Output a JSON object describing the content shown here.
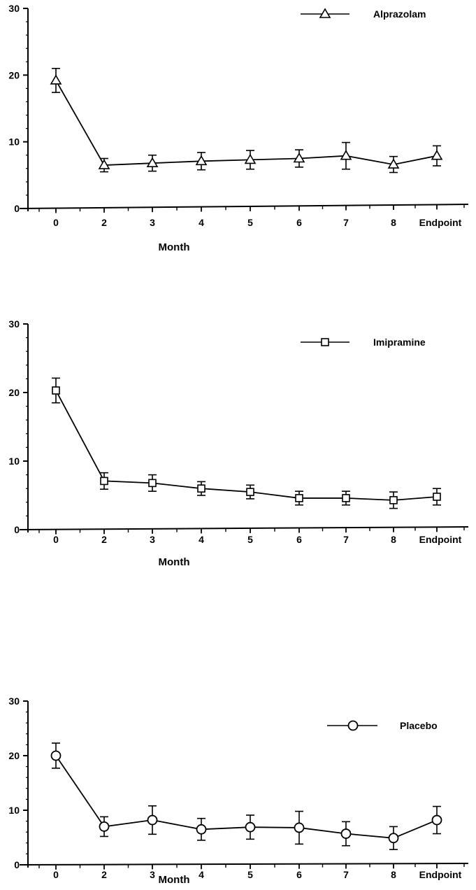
{
  "chart_data": [
    {
      "type": "line",
      "xlabel": "Month",
      "ylabel": "",
      "ylim": [
        0,
        30
      ],
      "yticks": [
        0,
        10,
        20,
        30
      ],
      "categories": [
        "0",
        "2",
        "3",
        "4",
        "5",
        "6",
        "7",
        "8",
        "Endpoint"
      ],
      "legend_position": "top-right",
      "grid": false,
      "series": [
        {
          "name": "Alprazolam",
          "marker": "triangle",
          "values": [
            19.2,
            6.5,
            6.8,
            7.1,
            7.3,
            7.5,
            7.9,
            6.6,
            7.9
          ],
          "error": [
            1.8,
            1.0,
            1.2,
            1.3,
            1.4,
            1.3,
            2.0,
            1.2,
            1.5
          ]
        }
      ]
    },
    {
      "type": "line",
      "xlabel": "Month",
      "ylabel": "",
      "ylim": [
        0,
        30
      ],
      "yticks": [
        0,
        10,
        20,
        30
      ],
      "categories": [
        "0",
        "2",
        "3",
        "4",
        "5",
        "6",
        "7",
        "8",
        "Endpoint"
      ],
      "legend_position": "top-right",
      "grid": false,
      "series": [
        {
          "name": "Imipramine",
          "marker": "square",
          "values": [
            20.3,
            7.1,
            6.8,
            6.0,
            5.5,
            4.6,
            4.6,
            4.3,
            4.8
          ],
          "error": [
            1.8,
            1.2,
            1.2,
            1.0,
            1.0,
            1.0,
            1.0,
            1.2,
            1.2
          ]
        }
      ]
    },
    {
      "type": "line",
      "xlabel": "Month",
      "ylabel": "",
      "ylim": [
        0,
        30
      ],
      "yticks": [
        0,
        10,
        20,
        30
      ],
      "categories": [
        "0",
        "2",
        "3",
        "4",
        "5",
        "6",
        "7",
        "8",
        "Endpoint"
      ],
      "legend_position": "top-right",
      "grid": false,
      "series": [
        {
          "name": "Placebo",
          "marker": "circle",
          "values": [
            20.0,
            7.0,
            8.2,
            6.5,
            6.9,
            6.8,
            5.7,
            4.9,
            8.2
          ],
          "error": [
            2.3,
            1.8,
            2.6,
            2.0,
            2.2,
            3.0,
            2.2,
            2.1,
            2.5
          ]
        }
      ]
    }
  ]
}
